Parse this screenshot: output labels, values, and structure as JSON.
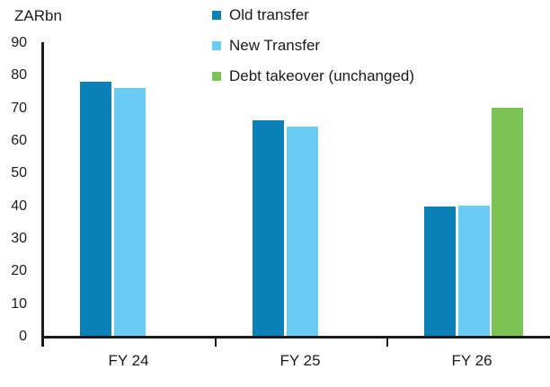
{
  "chart_data": {
    "type": "bar",
    "title": "",
    "unit_label": "ZARbn",
    "categories": [
      "FY 24",
      "FY 25",
      "FY 26"
    ],
    "series": [
      {
        "name": "Old transfer",
        "color": "#0b7fb8",
        "values": [
          78,
          66,
          39.5
        ]
      },
      {
        "name": "New Transfer",
        "color": "#6accf2",
        "values": [
          76,
          64,
          40
        ]
      },
      {
        "name": "Debt takeover (unchanged)",
        "color": "#7cc355",
        "values": [
          null,
          null,
          70
        ]
      }
    ],
    "xlabel": "",
    "ylabel": "ZARbn",
    "ylim": [
      0,
      90
    ],
    "yticks": [
      0,
      10,
      20,
      30,
      40,
      50,
      60,
      70,
      80,
      90
    ],
    "legend_position": "top-center",
    "grid": false,
    "axis_color": "#1a1a1a",
    "text_color": "#1a1a1a",
    "background_color": "#ffffff"
  }
}
